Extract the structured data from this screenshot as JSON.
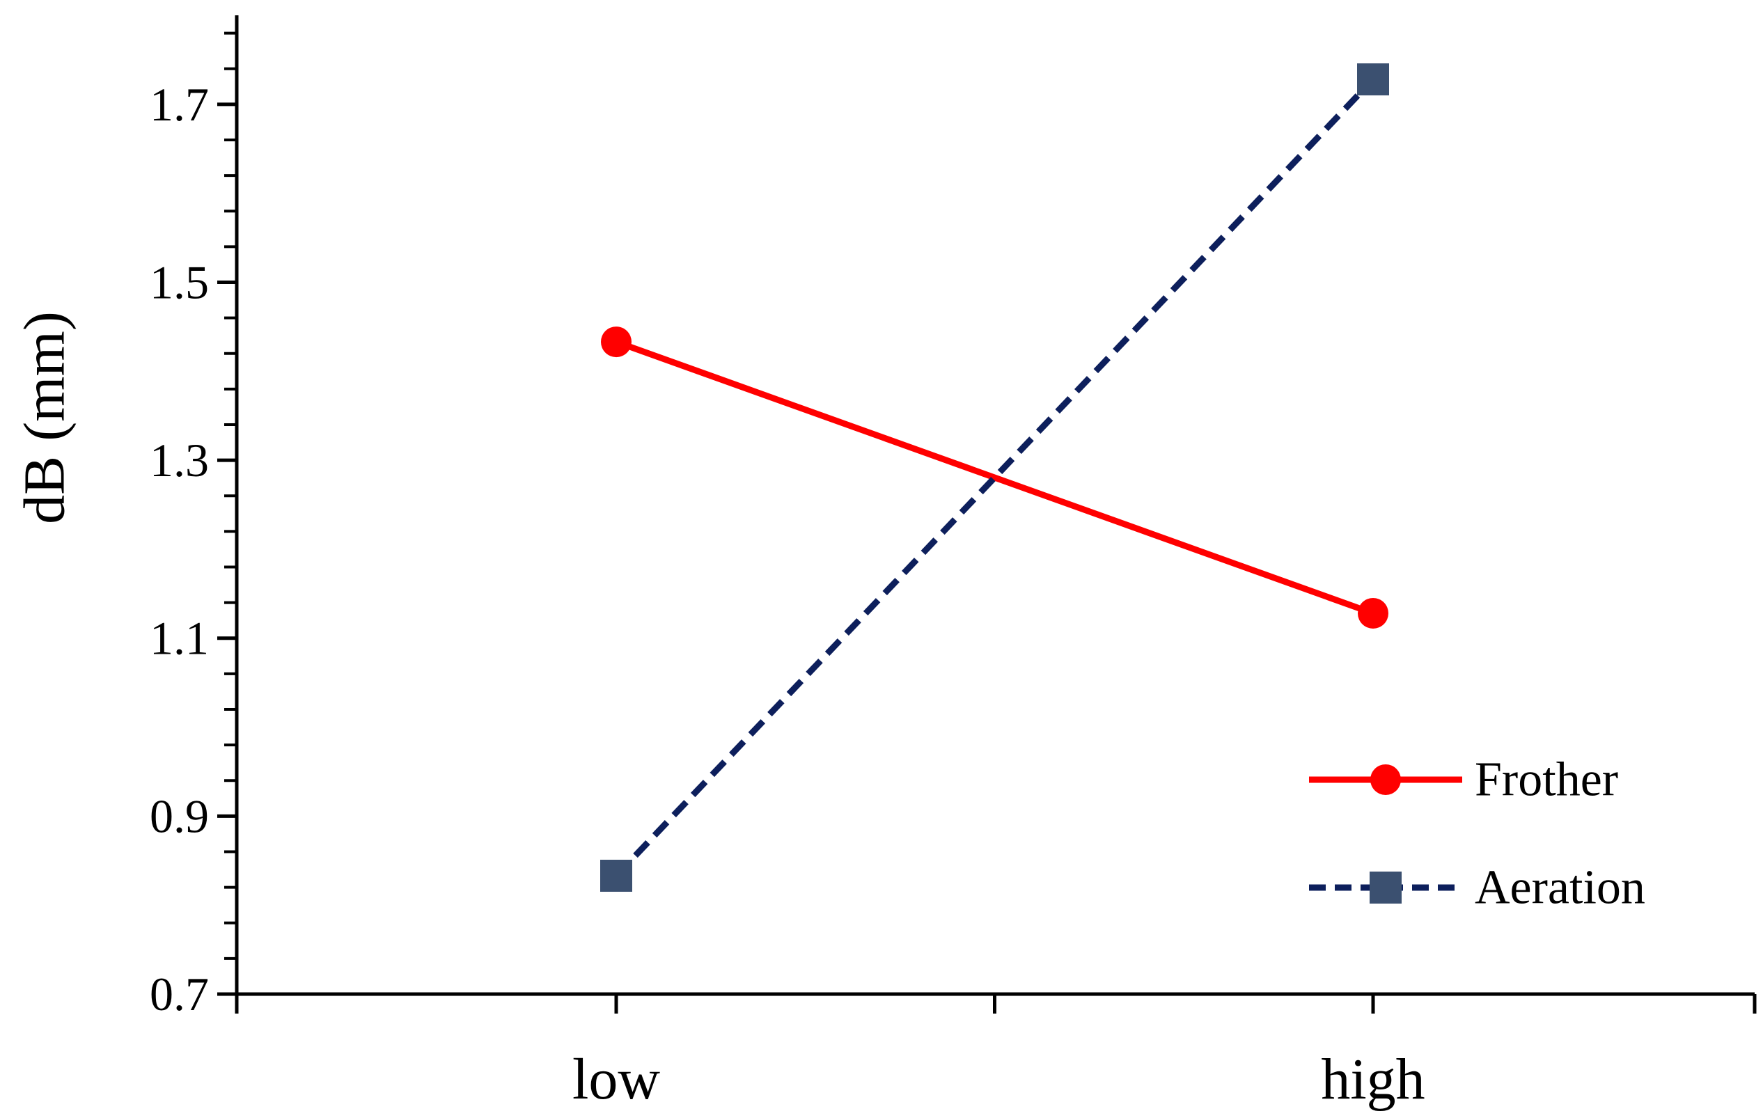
{
  "chart_data": {
    "type": "line",
    "categories": [
      "low",
      "high"
    ],
    "ylabel": "dB (mm)",
    "xlabel": "",
    "title": "",
    "ylim": [
      0.7,
      1.8
    ],
    "yticks": [
      0.7,
      0.9,
      1.1,
      1.3,
      1.5,
      1.7
    ],
    "ytick_labels": [
      "0.7",
      "0.9",
      "1.1",
      "1.3",
      "1.5",
      "1.7"
    ],
    "minor_tick_step": 0.04,
    "grid": false,
    "legend_position": "bottom-right",
    "series": [
      {
        "name": "Frother",
        "values": [
          1.433,
          1.128
        ],
        "color": "#ff0000",
        "line_style": "solid",
        "marker": "circle"
      },
      {
        "name": "Aeration",
        "values": [
          0.833,
          1.728
        ],
        "color": "#0d1f5c",
        "marker_color": "#3b5070",
        "line_style": "dashed",
        "marker": "square"
      }
    ]
  }
}
